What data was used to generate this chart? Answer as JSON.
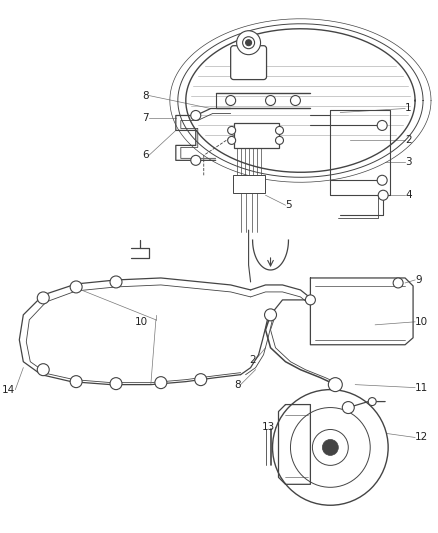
{
  "bg_color": "#ffffff",
  "line_color": "#444444",
  "label_color": "#222222",
  "figsize": [
    4.38,
    5.33
  ],
  "dpi": 100,
  "lw_main": 1.0,
  "lw_thin": 0.6,
  "lw_leader": 0.5
}
